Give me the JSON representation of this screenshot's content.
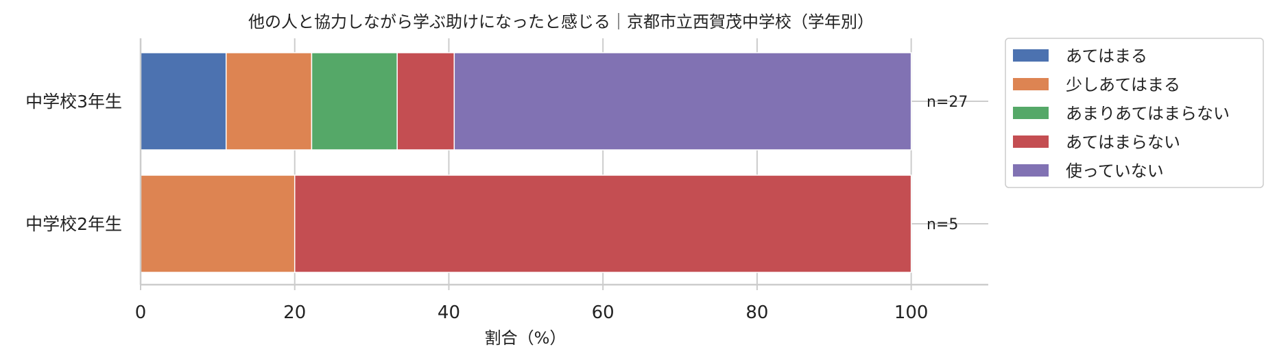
{
  "chart_data": {
    "type": "bar",
    "orientation": "horizontal",
    "stacked": true,
    "title": "他の人と協力しながら学ぶ助けになったと感じる｜京都市立西賀茂中学校（学年別）",
    "xlabel": "割合（%）",
    "ylabel": "",
    "xlim": [
      0,
      110
    ],
    "xticks": [
      0,
      20,
      40,
      60,
      80,
      100
    ],
    "grid": true,
    "legend_position": "outside-right-top",
    "categories": [
      "中学校3年生",
      "中学校2年生"
    ],
    "n_labels": [
      "n=27",
      "n=5"
    ],
    "series": [
      {
        "name": "あてはまる",
        "color": "#4c72b0",
        "values": [
          11.1,
          0
        ]
      },
      {
        "name": "少しあてはまる",
        "color": "#dd8452",
        "values": [
          11.1,
          20
        ]
      },
      {
        "name": "あまりあてはまらない",
        "color": "#55a868",
        "values": [
          11.1,
          0
        ]
      },
      {
        "name": "あてはまらない",
        "color": "#c44e52",
        "values": [
          7.4,
          80
        ]
      },
      {
        "name": "使っていない",
        "color": "#8172b3",
        "values": [
          59.3,
          0
        ]
      }
    ]
  }
}
